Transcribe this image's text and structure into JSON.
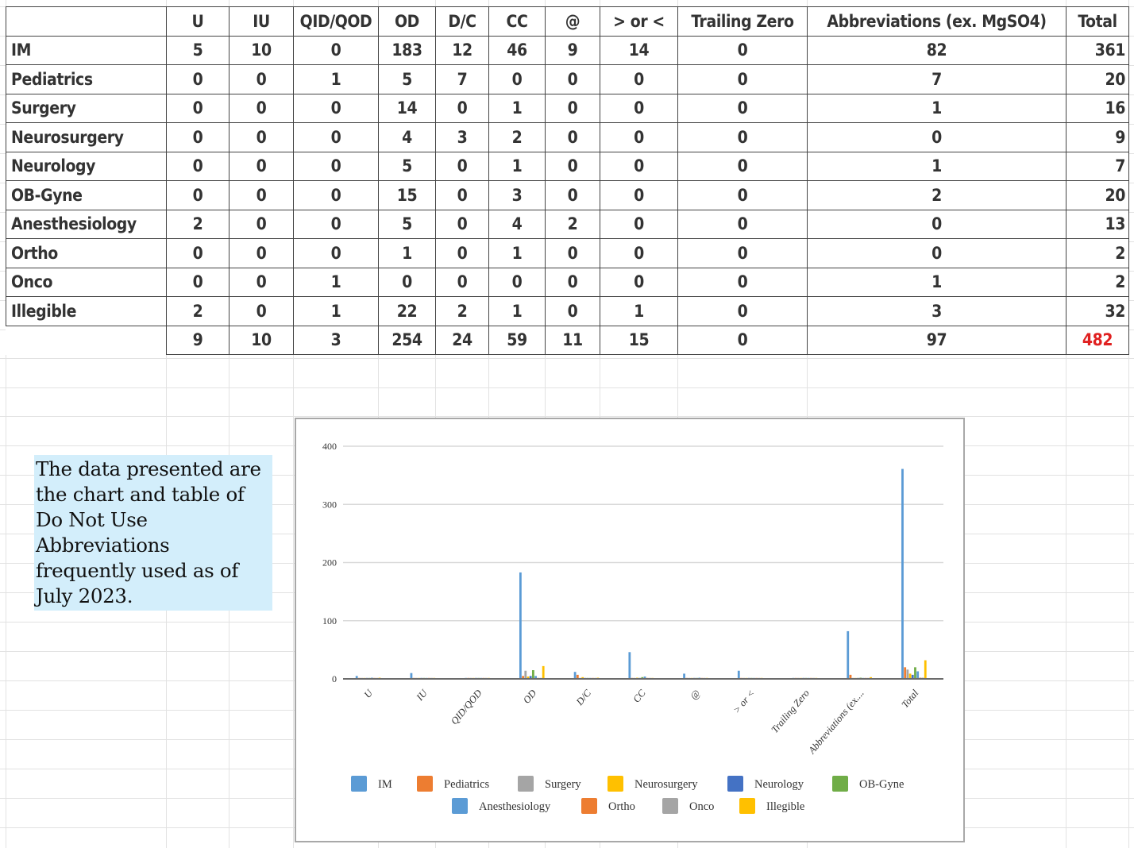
{
  "table": {
    "columns": [
      "",
      "U",
      "IU",
      "QID/QOD",
      "OD",
      "D/C",
      "CC",
      "@",
      "> or <",
      "Trailing Zero",
      "Abbreviations (ex. MgSO4)",
      "Total"
    ],
    "rows": [
      {
        "label": "IM",
        "values": [
          "5",
          "10",
          "0",
          "183",
          "12",
          "46",
          "9",
          "14",
          "0",
          "82",
          "361"
        ]
      },
      {
        "label": "Pediatrics",
        "values": [
          "0",
          "0",
          "1",
          "5",
          "7",
          "0",
          "0",
          "0",
          "0",
          "7",
          "20"
        ]
      },
      {
        "label": "Surgery",
        "values": [
          "0",
          "0",
          "0",
          "14",
          "0",
          "1",
          "0",
          "0",
          "0",
          "1",
          "16"
        ]
      },
      {
        "label": "Neurosurgery",
        "values": [
          "0",
          "0",
          "0",
          "4",
          "3",
          "2",
          "0",
          "0",
          "0",
          "0",
          "9"
        ]
      },
      {
        "label": "Neurology",
        "values": [
          "0",
          "0",
          "0",
          "5",
          "0",
          "1",
          "0",
          "0",
          "0",
          "1",
          "7"
        ]
      },
      {
        "label": "OB-Gyne",
        "values": [
          "0",
          "0",
          "0",
          "15",
          "0",
          "3",
          "0",
          "0",
          "0",
          "2",
          "20"
        ]
      },
      {
        "label": "Anesthesiology",
        "values": [
          "2",
          "0",
          "0",
          "5",
          "0",
          "4",
          "2",
          "0",
          "0",
          "0",
          "13"
        ]
      },
      {
        "label": "Ortho",
        "values": [
          "0",
          "0",
          "0",
          "1",
          "0",
          "1",
          "0",
          "0",
          "0",
          "0",
          "2"
        ]
      },
      {
        "label": "Onco",
        "values": [
          "0",
          "0",
          "1",
          "0",
          "0",
          "0",
          "0",
          "0",
          "0",
          "1",
          "2"
        ]
      },
      {
        "label": "Illegible",
        "values": [
          "2",
          "0",
          "1",
          "22",
          "2",
          "1",
          "0",
          "1",
          "0",
          "3",
          "32"
        ]
      }
    ],
    "totals": [
      "9",
      "10",
      "3",
      "254",
      "24",
      "59",
      "11",
      "15",
      "0",
      "97",
      "482"
    ],
    "grand_total_color": "#e02020"
  },
  "note": {
    "lines": [
      "The data presented are",
      "the chart and table of",
      "Do Not Use",
      "Abbreviations",
      "frequently used as of",
      "July 2023."
    ]
  },
  "chart_data": {
    "type": "bar",
    "title": "",
    "xlabel": "",
    "ylabel": "",
    "ylim": [
      0,
      400
    ],
    "yticks": [
      0,
      100,
      200,
      300,
      400
    ],
    "grid": true,
    "legend_position": "bottom",
    "categories": [
      "U",
      "IU",
      "QID/QOD",
      "OD",
      "D/C",
      "CC",
      "@",
      "> or <",
      "Trailing Zero",
      "Abbreviations (ex....",
      "Total"
    ],
    "series": [
      {
        "name": "IM",
        "color": "#5b9bd5",
        "values": [
          5,
          10,
          0,
          183,
          12,
          46,
          9,
          14,
          0,
          82,
          361
        ]
      },
      {
        "name": "Pediatrics",
        "color": "#ed7d31",
        "values": [
          0,
          0,
          1,
          5,
          7,
          0,
          0,
          0,
          0,
          7,
          20
        ]
      },
      {
        "name": "Surgery",
        "color": "#a5a5a5",
        "values": [
          0,
          0,
          0,
          14,
          0,
          1,
          0,
          0,
          0,
          1,
          16
        ]
      },
      {
        "name": "Neurosurgery",
        "color": "#ffc000",
        "values": [
          0,
          0,
          0,
          4,
          3,
          2,
          0,
          0,
          0,
          0,
          9
        ]
      },
      {
        "name": "Neurology",
        "color": "#4472c4",
        "values": [
          0,
          0,
          0,
          5,
          0,
          1,
          0,
          0,
          0,
          1,
          7
        ]
      },
      {
        "name": "OB-Gyne",
        "color": "#70ad47",
        "values": [
          0,
          0,
          0,
          15,
          0,
          3,
          0,
          0,
          0,
          2,
          20
        ]
      },
      {
        "name": "Anesthesiology",
        "color": "#5b9bd5",
        "values": [
          2,
          0,
          0,
          5,
          0,
          4,
          2,
          0,
          0,
          0,
          13
        ]
      },
      {
        "name": "Ortho",
        "color": "#ed7d31",
        "values": [
          0,
          0,
          0,
          1,
          0,
          1,
          0,
          0,
          0,
          0,
          2
        ]
      },
      {
        "name": "Onco",
        "color": "#a5a5a5",
        "values": [
          0,
          0,
          1,
          0,
          0,
          0,
          0,
          0,
          0,
          1,
          2
        ]
      },
      {
        "name": "Illegible",
        "color": "#ffc000",
        "values": [
          2,
          0,
          1,
          22,
          2,
          1,
          0,
          1,
          0,
          3,
          32
        ]
      }
    ]
  }
}
